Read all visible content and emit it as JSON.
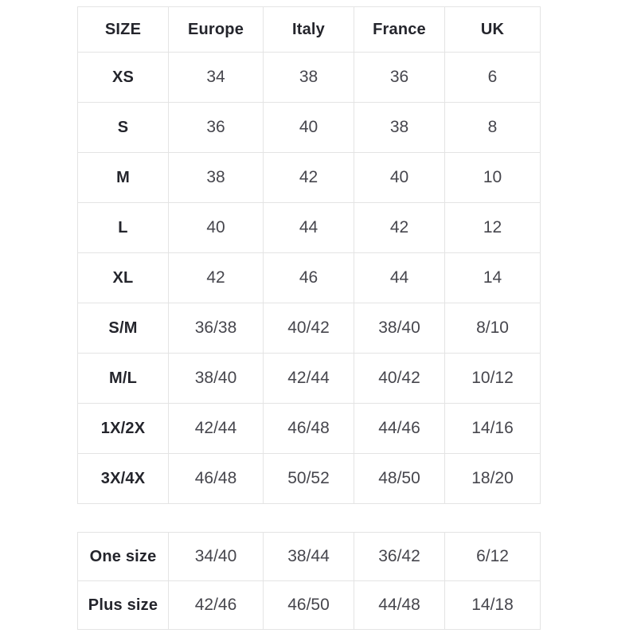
{
  "page": {
    "background": "#ffffff"
  },
  "colors": {
    "border": "#e4e4e4",
    "header_text": "#24252c",
    "value_text": "#46464d"
  },
  "size_table": {
    "columns": [
      "SIZE",
      "Europe",
      "Italy",
      "France",
      "UK"
    ],
    "rows": [
      {
        "label": "XS",
        "values": [
          "34",
          "38",
          "36",
          "6"
        ]
      },
      {
        "label": "S",
        "values": [
          "36",
          "40",
          "38",
          "8"
        ]
      },
      {
        "label": "M",
        "values": [
          "38",
          "42",
          "40",
          "10"
        ]
      },
      {
        "label": "L",
        "values": [
          "40",
          "44",
          "42",
          "12"
        ]
      },
      {
        "label": "XL",
        "values": [
          "42",
          "46",
          "44",
          "14"
        ]
      },
      {
        "label": "S/M",
        "values": [
          "36/38",
          "40/42",
          "38/40",
          "8/10"
        ]
      },
      {
        "label": "M/L",
        "values": [
          "38/40",
          "42/44",
          "40/42",
          "10/12"
        ]
      },
      {
        "label": "1X/2X",
        "values": [
          "42/44",
          "46/48",
          "44/46",
          "14/16"
        ]
      },
      {
        "label": "3X/4X",
        "values": [
          "46/48",
          "50/52",
          "48/50",
          "18/20"
        ]
      }
    ]
  },
  "special_table": {
    "rows": [
      {
        "label": "One size",
        "values": [
          "34/40",
          "38/44",
          "36/42",
          "6/12"
        ]
      },
      {
        "label": "Plus size",
        "values": [
          "42/46",
          "46/50",
          "44/48",
          "14/18"
        ]
      }
    ]
  }
}
